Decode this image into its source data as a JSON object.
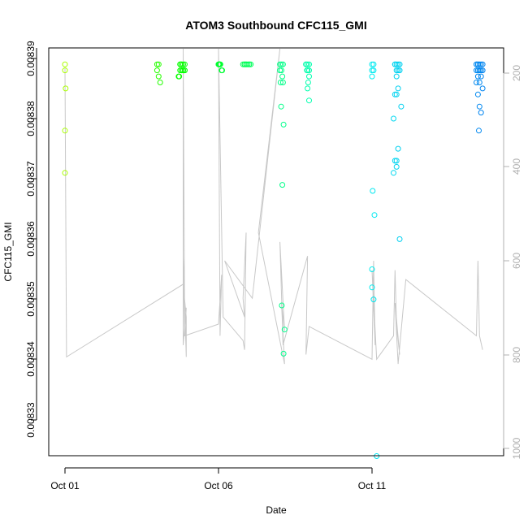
{
  "chart_data": {
    "type": "scatter",
    "title": "ATOM3 Southbound CFC115_GMI",
    "xlabel": "Date",
    "ylabel": "CFC115_GMI",
    "x_ticks": [
      "Oct 01",
      "Oct 06",
      "Oct 11"
    ],
    "y_ticks": [
      "0.00833",
      "0.00834",
      "0.00835",
      "0.00836",
      "0.00837",
      "0.00838",
      "0.00839"
    ],
    "y2_ticks": [
      "200",
      "400",
      "600",
      "800",
      "1000"
    ],
    "xlim": [
      0,
      14.5
    ],
    "ylim": [
      0.008321,
      0.008391
    ],
    "y2lim": [
      1020,
      145
    ],
    "y2_reversed": true,
    "grid": false,
    "marker": "open-circle",
    "color_gradient": "yellow-green to cyan to blue (by time)",
    "series": [
      {
        "x": [
          0.0,
          0.0,
          0.02,
          0.0,
          0.0
        ],
        "y": [
          0.008389,
          0.008388,
          0.008385,
          0.008378,
          0.008371
        ]
      },
      {
        "x": [
          3.0,
          3.05,
          3.0,
          3.05,
          3.1
        ],
        "y": [
          0.008389,
          0.008389,
          0.008388,
          0.008387,
          0.008386
        ]
      },
      {
        "x": [
          3.75,
          3.8,
          3.85,
          3.9,
          3.75,
          3.8,
          3.85,
          3.9,
          3.8,
          3.85,
          3.9,
          3.75,
          3.8,
          3.7,
          3.72
        ],
        "y": [
          0.008389,
          0.008389,
          0.008389,
          0.008389,
          0.008389,
          0.008389,
          0.008388,
          0.008388,
          0.008388,
          0.008388,
          0.008388,
          0.008388,
          0.008388,
          0.008387,
          0.008387
        ]
      },
      {
        "x": [
          5.0,
          5.02,
          5.04,
          5.06,
          5.0,
          5.02,
          5.04,
          5.1,
          5.12
        ],
        "y": [
          0.008389,
          0.008389,
          0.008389,
          0.008389,
          0.008389,
          0.008389,
          0.008389,
          0.008388,
          0.008388
        ]
      },
      {
        "x": [
          5.8,
          5.85,
          5.9,
          5.95,
          6.0,
          6.05,
          5.85,
          5.9,
          6.0
        ],
        "y": [
          0.008389,
          0.008389,
          0.008389,
          0.008389,
          0.008389,
          0.008389,
          0.008389,
          0.008389,
          0.008389
        ]
      },
      {
        "x": [
          7.0,
          7.05,
          7.1,
          7.0,
          7.05,
          7.08,
          7.02,
          7.1,
          7.04,
          7.06
        ],
        "y": [
          0.008389,
          0.008389,
          0.008389,
          0.008388,
          0.008388,
          0.008387,
          0.008386,
          0.008386,
          0.008382,
          0.008349
        ]
      },
      {
        "x": [
          7.12,
          7.08,
          7.15,
          7.12
        ],
        "y": [
          0.008379,
          0.008369,
          0.008345,
          0.008341
        ]
      },
      {
        "x": [
          7.85,
          7.9,
          7.95,
          7.85,
          7.9,
          7.95,
          7.88,
          7.95,
          7.92,
          7.9,
          7.95
        ],
        "y": [
          0.008389,
          0.008389,
          0.008389,
          0.008389,
          0.008388,
          0.008388,
          0.008388,
          0.008387,
          0.008386,
          0.008385,
          0.008383
        ]
      },
      {
        "x": [
          10.0,
          10.05,
          10.0,
          10.05,
          10.0,
          10.02,
          10.08,
          10.0,
          10.05,
          10.0,
          10.15
        ],
        "y": [
          0.008389,
          0.008389,
          0.008388,
          0.008388,
          0.008387,
          0.008368,
          0.008364,
          0.008355,
          0.00835,
          0.008352,
          0.008324
        ]
      },
      {
        "x": [
          10.75,
          10.8,
          10.85,
          10.9,
          10.75,
          10.8,
          10.85,
          10.9,
          10.8,
          10.85,
          10.75,
          10.8,
          10.95,
          10.7,
          10.85,
          10.8,
          10.75,
          10.8,
          10.7,
          10.9
        ],
        "y": [
          0.008389,
          0.008389,
          0.008389,
          0.008389,
          0.008389,
          0.008388,
          0.008388,
          0.008388,
          0.008387,
          0.008385,
          0.008384,
          0.008384,
          0.008382,
          0.00838,
          0.008375,
          0.008373,
          0.008373,
          0.008372,
          0.008371,
          0.00836
        ]
      },
      {
        "x": [
          13.4,
          13.45,
          13.5,
          13.55,
          13.6,
          13.4,
          13.45,
          13.5,
          13.55,
          13.6,
          13.45,
          13.5,
          13.4,
          13.55,
          13.45,
          13.5,
          13.4,
          13.6,
          13.45,
          13.5,
          13.55,
          13.48
        ],
        "y": [
          0.008389,
          0.008389,
          0.008389,
          0.008389,
          0.008389,
          0.008389,
          0.008389,
          0.008388,
          0.008388,
          0.008388,
          0.008388,
          0.008388,
          0.008388,
          0.008387,
          0.008387,
          0.008386,
          0.008386,
          0.008385,
          0.008384,
          0.008382,
          0.008381,
          0.008378
        ]
      }
    ],
    "altitude_trace": {
      "x": [
        0.0,
        0.05,
        3.85,
        3.95,
        3.95,
        3.85,
        3.9,
        3.85,
        3.85,
        3.95,
        3.9,
        5.0,
        5.1,
        5.05,
        5.0,
        5.15,
        5.8,
        5.85,
        5.9,
        5.8,
        5.85,
        5.2,
        6.1,
        7.0,
        6.3,
        7.15,
        7.05,
        7.15,
        7.0,
        7.1,
        7.9,
        7.85,
        7.95,
        10.0,
        10.05,
        10.1,
        10.0,
        10.15,
        10.7,
        10.75,
        10.8,
        10.9,
        10.75,
        10.85,
        11.1,
        13.4,
        13.45,
        13.5,
        13.6
      ],
      "y": [
        190,
        805,
        650,
        720,
        805,
        590,
        760,
        145,
        780,
        700,
        760,
        735,
        630,
        760,
        145,
        720,
        770,
        790,
        540,
        680,
        720,
        600,
        680,
        145,
        540,
        820,
        690,
        750,
        560,
        780,
        590,
        800,
        740,
        810,
        600,
        780,
        620,
        810,
        760,
        620,
        740,
        800,
        690,
        820,
        640,
        760,
        600,
        760,
        790
      ]
    }
  }
}
